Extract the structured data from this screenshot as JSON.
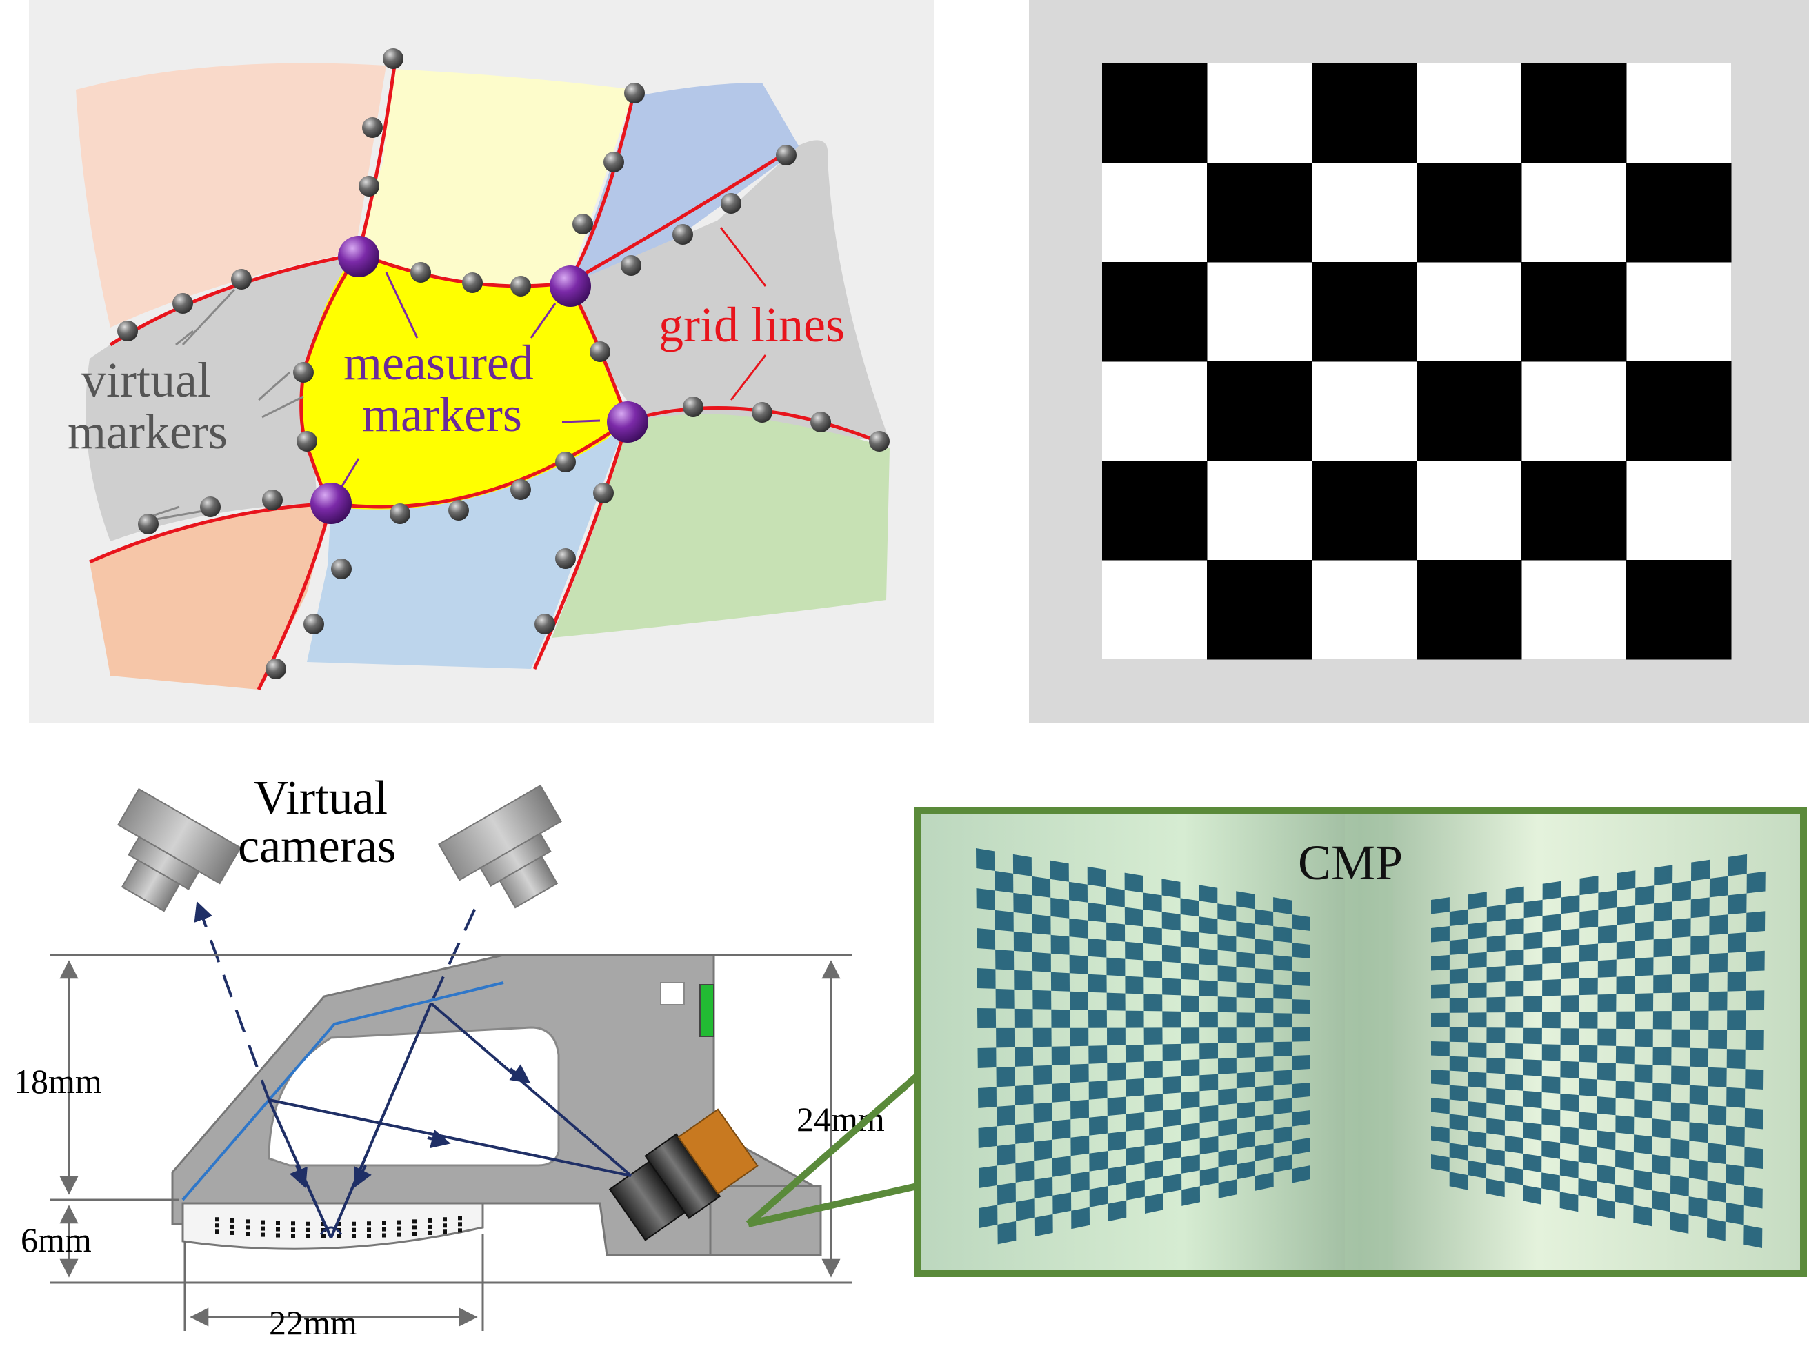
{
  "panel_a": {
    "label_grid_lines": "grid lines",
    "label_measured_line1": "measured",
    "label_measured_line2": "markers",
    "label_virtual_line1": "virtual",
    "label_virtual_line2": "markers"
  },
  "panel_b": {
    "rows": 6,
    "cols": 6
  },
  "panel_c": {
    "title_line1": "Virtual",
    "title_line2": "cameras",
    "dim_height_upper": "18mm",
    "dim_height_lower": "6mm",
    "dim_height_total": "24mm",
    "dim_width": "22mm"
  },
  "panel_d": {
    "label": "CMP"
  },
  "colors": {
    "grid_line_red": "#e8141c",
    "measured_marker_purple": "#7b2aa8",
    "virtual_marker_gray": "#5e5e5e",
    "text_gray": "#555555",
    "text_purple": "#6a2a9a",
    "frame_green": "#5a8a3a",
    "ray_navy": "#1f2f66",
    "mirror_blue": "#2f77c9",
    "body_gray": "#a7a7a7"
  }
}
